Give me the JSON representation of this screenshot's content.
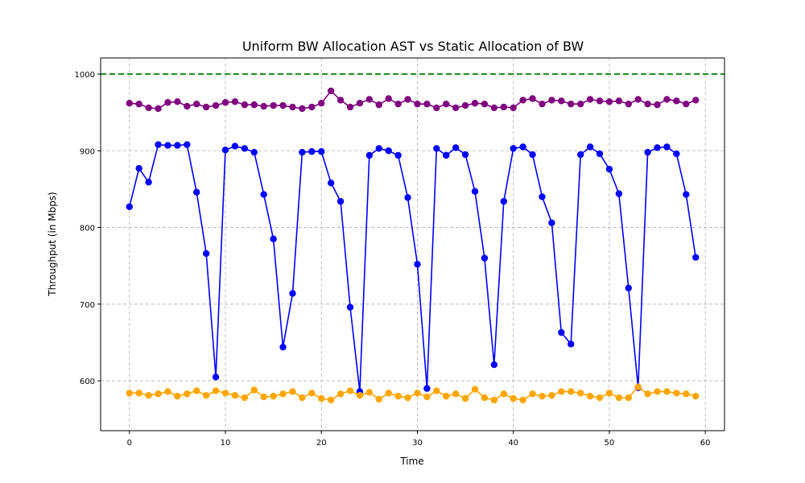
{
  "chart_data": {
    "type": "line",
    "title": "Uniform BW Allocation AST vs Static Allocation of BW",
    "xlabel": "Time",
    "ylabel": "Throughput (in Mbps)",
    "xlim": [
      -3,
      62
    ],
    "ylim": [
      535,
      1021
    ],
    "x_ticks": [
      0,
      10,
      20,
      30,
      40,
      50,
      60
    ],
    "y_ticks": [
      600,
      700,
      800,
      900,
      1000
    ],
    "grid": true,
    "reference_line": {
      "y": 1000,
      "color": "#008000",
      "style": "dashed"
    },
    "x": [
      0,
      1,
      2,
      3,
      4,
      5,
      6,
      7,
      8,
      9,
      10,
      11,
      12,
      13,
      14,
      15,
      16,
      17,
      18,
      19,
      20,
      21,
      22,
      23,
      24,
      25,
      26,
      27,
      28,
      29,
      30,
      31,
      32,
      33,
      34,
      35,
      36,
      37,
      38,
      39,
      40,
      41,
      42,
      43,
      44,
      45,
      46,
      47,
      48,
      49,
      50,
      51,
      52,
      53,
      54,
      55,
      56,
      57,
      58,
      59
    ],
    "series": [
      {
        "color": "#800080",
        "values": [
          962,
          961,
          956,
          955,
          963,
          964,
          958,
          961,
          957,
          959,
          963,
          964,
          960,
          960,
          958,
          959,
          959,
          957,
          955,
          957,
          962,
          978,
          966,
          957,
          962,
          967,
          960,
          968,
          961,
          967,
          961,
          961,
          956,
          961,
          956,
          959,
          962,
          961,
          956,
          957,
          956,
          966,
          968,
          961,
          966,
          965,
          961,
          961,
          967,
          965,
          964,
          965,
          961,
          967,
          961,
          960,
          967,
          965,
          961,
          966
        ]
      },
      {
        "color": "#0000ff",
        "values": [
          827,
          877,
          859,
          908,
          907,
          907,
          908,
          846,
          766,
          605,
          901,
          906,
          903,
          898,
          843,
          785,
          644,
          714,
          898,
          899,
          899,
          858,
          834,
          696,
          586,
          894,
          903,
          900,
          894,
          839,
          752,
          590,
          903,
          894,
          904,
          895,
          847,
          760,
          621,
          834,
          903,
          905,
          895,
          840,
          806,
          663,
          648,
          895,
          905,
          896,
          876,
          844,
          721,
          591,
          898,
          904,
          905,
          896,
          843,
          761
        ]
      },
      {
        "color": "#ffa500",
        "values": [
          584,
          584,
          581,
          583,
          586,
          580,
          583,
          587,
          581,
          587,
          584,
          581,
          578,
          588,
          579,
          580,
          583,
          586,
          578,
          584,
          577,
          575,
          583,
          587,
          581,
          585,
          576,
          584,
          580,
          578,
          584,
          579,
          587,
          580,
          583,
          577,
          589,
          578,
          575,
          583,
          577,
          575,
          583,
          580,
          581,
          586,
          586,
          584,
          580,
          578,
          584,
          578,
          578,
          592,
          583,
          586,
          586,
          584,
          583,
          580
        ]
      }
    ]
  }
}
